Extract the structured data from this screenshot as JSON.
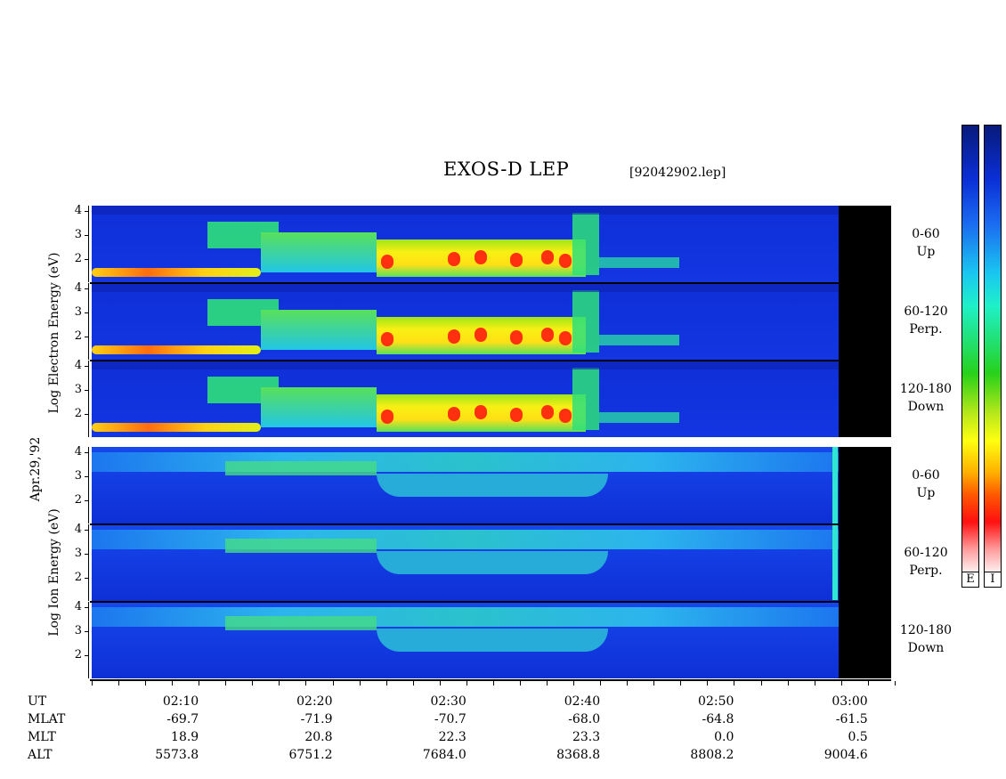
{
  "title": "EXOS-D LEP",
  "filename": "[92042902.lep]",
  "date_label": "Apr.29,'92",
  "electron_axis_label": "Log   Electron   Energy (eV)",
  "ion_axis_label": "Log   Ion   Energy (eV)",
  "colorbar_labels": [
    "E",
    "I"
  ],
  "chart_data": {
    "type": "heatmap",
    "title": "EXOS-D LEP",
    "x_unit": "UT",
    "time_range": [
      "02:03",
      "03:03"
    ],
    "data_end": "02:58",
    "yticks": [
      "4",
      "3",
      "2"
    ],
    "panels": [
      {
        "group": "Electron",
        "label": [
          "0-60",
          "Up"
        ]
      },
      {
        "group": "Electron",
        "label": [
          "60-120",
          "Perp."
        ]
      },
      {
        "group": "Electron",
        "label": [
          "120-180",
          "Down"
        ]
      },
      {
        "group": "Ion",
        "label": [
          "0-60",
          "Up"
        ]
      },
      {
        "group": "Ion",
        "label": [
          "60-120",
          "Perp."
        ]
      },
      {
        "group": "Ion",
        "label": [
          "120-180",
          "Down"
        ]
      }
    ],
    "xaxis": {
      "row_labels": [
        "UT",
        "MLAT",
        "MLT",
        "ALT"
      ],
      "rows": [
        [
          "02:10",
          "02:20",
          "02:30",
          "02:40",
          "02:50",
          "03:00"
        ],
        [
          "-69.7",
          "-71.9",
          "-70.7",
          "-68.0",
          "-64.8",
          "-61.5"
        ],
        [
          "18.9",
          "20.8",
          "22.3",
          "23.3",
          "0.0",
          "0.5"
        ],
        [
          "5573.8",
          "6751.2",
          "7684.0",
          "8368.8",
          "8808.2",
          "9004.6"
        ]
      ]
    }
  }
}
